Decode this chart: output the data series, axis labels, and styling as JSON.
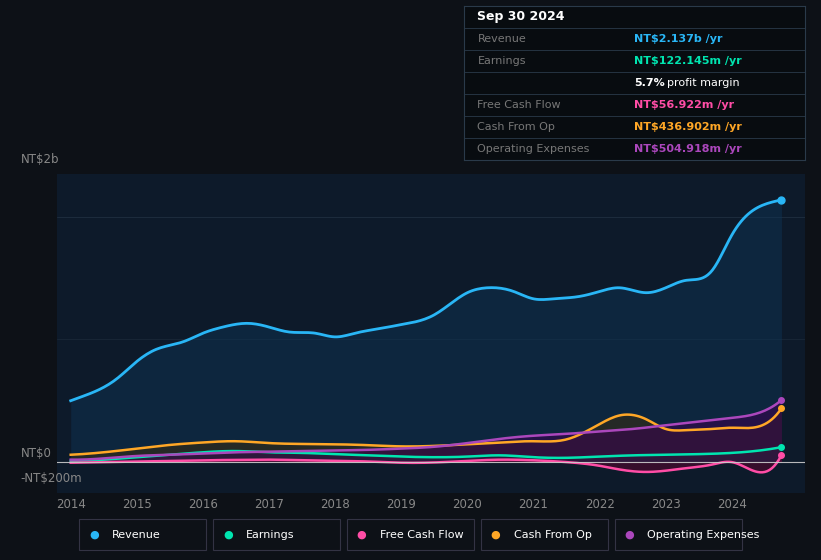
{
  "bg_color": "#0d1117",
  "chart_bg": "#0d1a2a",
  "y_label_top": "NT$2b",
  "y_label_zero": "NT$0",
  "y_label_neg": "-NT$200m",
  "info_box": {
    "date": "Sep 30 2024",
    "rows": [
      {
        "label": "Revenue",
        "value": "NT$2.137b /yr",
        "value_color": "#29b6f6"
      },
      {
        "label": "Earnings",
        "value": "NT$122.145m /yr",
        "value_color": "#00e5b0"
      },
      {
        "label": "",
        "value": "5.7% profit margin",
        "value_color": "#ffffff",
        "bold_part": "5.7%"
      },
      {
        "label": "Free Cash Flow",
        "value": "NT$56.922m /yr",
        "value_color": "#ff4da6"
      },
      {
        "label": "Cash From Op",
        "value": "NT$436.902m /yr",
        "value_color": "#ffa726"
      },
      {
        "label": "Operating Expenses",
        "value": "NT$504.918m /yr",
        "value_color": "#ab47bc"
      }
    ]
  },
  "legend": [
    {
      "label": "Revenue",
      "color": "#29b6f6"
    },
    {
      "label": "Earnings",
      "color": "#00e5b0"
    },
    {
      "label": "Free Cash Flow",
      "color": "#ff4da6"
    },
    {
      "label": "Cash From Op",
      "color": "#ffa726"
    },
    {
      "label": "Operating Expenses",
      "color": "#ab47bc"
    }
  ],
  "revenue_x": [
    2014.0,
    2014.3,
    2014.7,
    2015.0,
    2015.3,
    2015.7,
    2016.0,
    2016.3,
    2016.7,
    2017.0,
    2017.3,
    2017.7,
    2018.0,
    2018.3,
    2018.7,
    2019.0,
    2019.5,
    2020.0,
    2020.3,
    2020.7,
    2021.0,
    2021.3,
    2021.7,
    2022.0,
    2022.3,
    2022.7,
    2023.0,
    2023.3,
    2023.7,
    2024.0,
    2024.5,
    2024.75
  ],
  "revenue": [
    500,
    560,
    680,
    820,
    920,
    980,
    1050,
    1100,
    1130,
    1100,
    1060,
    1050,
    1020,
    1050,
    1090,
    1120,
    1200,
    1380,
    1420,
    1390,
    1330,
    1330,
    1350,
    1390,
    1420,
    1380,
    1420,
    1480,
    1560,
    1850,
    2100,
    2137
  ],
  "earnings_x": [
    2014.0,
    2014.5,
    2015.0,
    2015.5,
    2016.0,
    2016.5,
    2017.0,
    2017.5,
    2018.0,
    2018.5,
    2019.0,
    2019.5,
    2020.0,
    2020.5,
    2021.0,
    2021.5,
    2022.0,
    2022.5,
    2023.0,
    2023.5,
    2024.0,
    2024.5,
    2024.75
  ],
  "earnings": [
    10,
    20,
    40,
    60,
    80,
    90,
    80,
    75,
    65,
    55,
    45,
    40,
    45,
    55,
    40,
    35,
    45,
    55,
    60,
    65,
    75,
    100,
    122
  ],
  "fcf_x": [
    2014.0,
    2014.5,
    2015.0,
    2015.5,
    2016.0,
    2016.5,
    2017.0,
    2017.5,
    2018.0,
    2018.5,
    2019.0,
    2019.5,
    2020.0,
    2020.5,
    2021.0,
    2021.5,
    2022.0,
    2022.3,
    2022.7,
    2023.0,
    2023.3,
    2023.7,
    2024.0,
    2024.5,
    2024.75
  ],
  "fcf": [
    -5,
    0,
    5,
    10,
    15,
    18,
    20,
    15,
    10,
    5,
    -5,
    -3,
    10,
    20,
    15,
    0,
    -30,
    -60,
    -80,
    -70,
    -50,
    -20,
    0,
    -80,
    57
  ],
  "cfo_x": [
    2014.0,
    2014.5,
    2015.0,
    2015.5,
    2016.0,
    2016.5,
    2017.0,
    2017.5,
    2018.0,
    2018.5,
    2019.0,
    2019.5,
    2020.0,
    2020.5,
    2021.0,
    2021.5,
    2022.0,
    2022.3,
    2022.7,
    2023.0,
    2023.3,
    2023.7,
    2024.0,
    2024.5,
    2024.75
  ],
  "cfo": [
    60,
    80,
    110,
    140,
    160,
    170,
    155,
    148,
    145,
    138,
    128,
    132,
    145,
    160,
    170,
    185,
    310,
    380,
    350,
    270,
    260,
    270,
    280,
    310,
    437
  ],
  "opex_x": [
    2014.0,
    2014.5,
    2015.0,
    2015.5,
    2016.0,
    2016.5,
    2017.0,
    2017.5,
    2018.0,
    2018.5,
    2019.0,
    2019.5,
    2020.0,
    2020.5,
    2021.0,
    2021.5,
    2022.0,
    2022.5,
    2023.0,
    2023.5,
    2024.0,
    2024.5,
    2024.75
  ],
  "opex": [
    20,
    30,
    50,
    60,
    70,
    80,
    85,
    90,
    95,
    100,
    110,
    125,
    155,
    190,
    215,
    230,
    250,
    270,
    300,
    330,
    360,
    420,
    505
  ],
  "ylim": [
    -250,
    2350
  ],
  "xlim": [
    2013.8,
    2025.1
  ]
}
